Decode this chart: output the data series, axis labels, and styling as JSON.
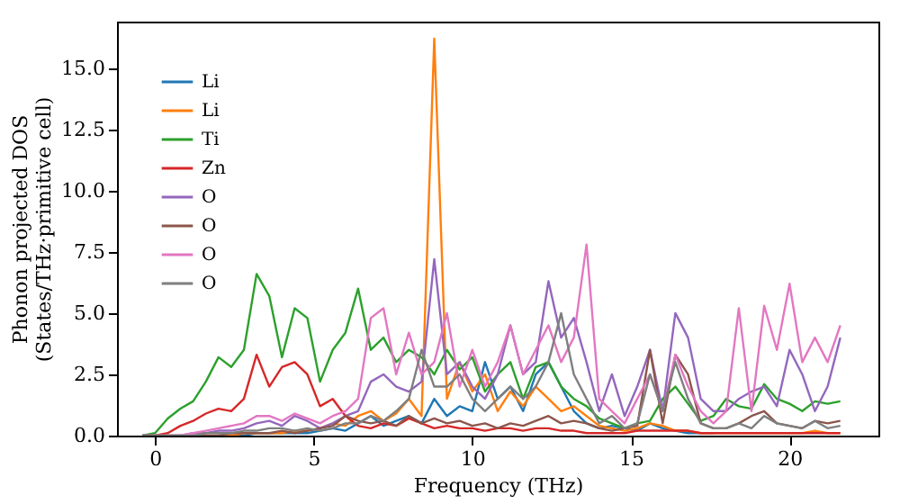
{
  "chart_data": {
    "type": "line",
    "xlabel": "Frequency (THz)",
    "ylabel": "Phonon projected DOS\n(States/THz·primitive cell)",
    "x": [
      -0.4,
      0,
      0.4,
      0.8,
      1.2,
      1.6,
      2.0,
      2.4,
      2.8,
      3.2,
      3.6,
      4.0,
      4.4,
      4.8,
      5.2,
      5.6,
      6.0,
      6.4,
      6.8,
      7.2,
      7.6,
      8.0,
      8.4,
      8.8,
      9.2,
      9.6,
      10.0,
      10.4,
      10.8,
      11.2,
      11.6,
      12.0,
      12.4,
      12.8,
      13.2,
      13.6,
      14.0,
      14.4,
      14.8,
      15.2,
      15.6,
      16.0,
      16.4,
      16.8,
      17.2,
      17.6,
      18.0,
      18.4,
      18.8,
      19.2,
      19.6,
      20.0,
      20.4,
      20.8,
      21.2,
      21.6
    ],
    "series": [
      {
        "name": "Li",
        "color": "#1f77b4",
        "values": [
          null,
          null,
          null,
          null,
          null,
          null,
          0,
          0,
          0,
          0.1,
          0.1,
          0.1,
          0.1,
          0.1,
          0.2,
          0.3,
          0.2,
          0.5,
          0.8,
          0.4,
          0.6,
          0.8,
          0.5,
          1.5,
          0.8,
          1.2,
          1.0,
          3.0,
          1.5,
          2.0,
          1.0,
          2.5,
          3.0,
          2.0,
          1.0,
          0.5,
          0.3,
          0.4,
          0.3,
          0.2,
          0.5,
          0.3,
          0.2,
          0.1,
          0.1,
          0.1,
          null,
          null,
          null,
          null,
          null,
          null,
          null,
          null,
          null,
          null
        ]
      },
      {
        "name": "Li",
        "color": "#ff7f0e",
        "values": [
          null,
          null,
          null,
          null,
          null,
          0,
          0,
          0,
          0.1,
          0.1,
          0.1,
          0.1,
          0.2,
          0.2,
          0.3,
          0.5,
          0.4,
          0.8,
          1.0,
          0.6,
          0.9,
          1.5,
          0.8,
          16.2,
          1.5,
          3.0,
          1.8,
          2.5,
          1.0,
          1.8,
          1.2,
          2.0,
          1.5,
          1.0,
          1.2,
          0.8,
          0.4,
          0.3,
          0.2,
          0.3,
          0.5,
          0.4,
          0.2,
          0.2,
          0.1,
          0.1,
          0.1,
          0.1,
          0.1,
          0.1,
          0.1,
          0.1,
          0.1,
          0.2,
          0.1,
          0.1
        ]
      },
      {
        "name": "Ti",
        "color": "#2ca02c",
        "values": [
          0,
          0.1,
          0.7,
          1.1,
          1.4,
          2.2,
          3.2,
          2.8,
          3.5,
          6.6,
          5.7,
          3.2,
          5.2,
          4.8,
          2.2,
          3.5,
          4.2,
          6.0,
          3.5,
          4.0,
          3.0,
          3.5,
          3.2,
          2.5,
          3.5,
          2.7,
          3.2,
          1.8,
          2.5,
          3.0,
          1.5,
          2.8,
          3.0,
          2.0,
          1.5,
          1.2,
          0.7,
          0.5,
          0.3,
          0.5,
          0.6,
          1.5,
          2.0,
          1.3,
          0.6,
          0.8,
          1.5,
          1.2,
          1.1,
          2.1,
          1.5,
          1.3,
          1.0,
          1.4,
          1.3,
          1.4
        ]
      },
      {
        "name": "Zn",
        "color": "#d62728",
        "values": [
          0,
          0,
          0.1,
          0.4,
          0.6,
          0.9,
          1.1,
          1.0,
          1.5,
          3.3,
          2.0,
          2.8,
          3.0,
          2.5,
          1.2,
          1.5,
          0.8,
          0.4,
          0.3,
          0.5,
          0.4,
          0.7,
          0.5,
          0.3,
          0.4,
          0.3,
          0.3,
          0.2,
          0.3,
          0.3,
          0.2,
          0.3,
          0.3,
          0.2,
          0.2,
          0.1,
          0.1,
          0.1,
          0.1,
          0.2,
          0.2,
          0.2,
          0.2,
          0.2,
          0.1,
          0.1,
          0.1,
          0.1,
          0.1,
          0.1,
          0.1,
          0.1,
          0.1,
          0.1,
          0.1,
          0.1
        ]
      },
      {
        "name": "O",
        "color": "#9467bd",
        "values": [
          null,
          null,
          0,
          0,
          0.1,
          0.1,
          0.2,
          0.2,
          0.3,
          0.5,
          0.6,
          0.4,
          0.8,
          0.6,
          0.3,
          0.5,
          0.8,
          1.0,
          2.2,
          2.5,
          2.0,
          1.8,
          2.2,
          7.2,
          2.5,
          3.0,
          2.0,
          1.5,
          2.5,
          4.5,
          2.5,
          3.0,
          6.3,
          4.0,
          4.8,
          3.0,
          1.0,
          2.5,
          0.8,
          2.0,
          3.5,
          1.0,
          5.0,
          4.0,
          1.5,
          1.0,
          1.0,
          1.5,
          1.8,
          2.0,
          1.2,
          3.5,
          2.5,
          1.0,
          2.0,
          4.0
        ]
      },
      {
        "name": "O",
        "color": "#8c564b",
        "values": [
          0,
          0,
          0,
          0,
          0,
          0,
          0,
          0.1,
          0.1,
          0.1,
          0.1,
          0.2,
          0.1,
          0.2,
          0.3,
          0.4,
          0.8,
          0.6,
          0.5,
          0.6,
          0.4,
          0.8,
          0.5,
          0.7,
          0.5,
          0.6,
          0.4,
          0.5,
          0.3,
          0.5,
          0.4,
          0.6,
          0.8,
          0.5,
          0.6,
          0.5,
          0.3,
          0.2,
          0.3,
          0.4,
          3.5,
          0.5,
          3.3,
          2.5,
          0.5,
          0.3,
          0.3,
          0.5,
          0.8,
          1.0,
          0.5,
          0.4,
          0.3,
          0.6,
          0.5,
          0.6
        ]
      },
      {
        "name": "O",
        "color": "#e377c2",
        "values": [
          0,
          0,
          0,
          0,
          0.1,
          0.2,
          0.3,
          0.4,
          0.5,
          0.8,
          0.8,
          0.6,
          0.9,
          0.7,
          0.5,
          0.8,
          1.0,
          1.5,
          4.8,
          5.2,
          2.5,
          4.2,
          2.5,
          3.0,
          5.0,
          2.0,
          3.5,
          2.0,
          3.0,
          4.5,
          2.5,
          3.5,
          4.5,
          3.0,
          4.0,
          7.8,
          1.5,
          1.0,
          0.5,
          1.5,
          2.5,
          1.0,
          3.3,
          2.0,
          1.0,
          0.5,
          1.0,
          5.2,
          1.0,
          5.3,
          3.5,
          6.2,
          3.0,
          4.0,
          3.0,
          4.5
        ]
      },
      {
        "name": "O",
        "color": "#7f7f7f",
        "values": [
          0,
          0,
          0,
          0,
          0,
          0.1,
          0.1,
          0.1,
          0.2,
          0.2,
          0.3,
          0.3,
          0.2,
          0.3,
          0.2,
          0.3,
          0.5,
          0.5,
          0.8,
          0.6,
          1.0,
          1.5,
          3.5,
          2.0,
          2.0,
          2.5,
          1.5,
          1.0,
          1.5,
          2.0,
          1.5,
          2.0,
          3.0,
          5.0,
          2.5,
          1.5,
          0.5,
          0.8,
          0.3,
          0.5,
          2.5,
          1.0,
          3.0,
          1.5,
          0.5,
          0.3,
          0.3,
          0.5,
          0.3,
          0.8,
          0.5,
          0.4,
          0.3,
          0.6,
          0.3,
          0.4
        ]
      }
    ],
    "xlim": [
      -1.2,
      22.8
    ],
    "xticks": [
      0,
      5,
      10,
      15,
      20
    ],
    "ylim": [
      0,
      16.9
    ],
    "yticks": [
      {
        "value": 0,
        "label": "0.0"
      },
      {
        "value": 2.5,
        "label": "2.5"
      },
      {
        "value": 5,
        "label": "5.0"
      },
      {
        "value": 7.5,
        "label": "7.5"
      },
      {
        "value": 10,
        "label": "10.0"
      },
      {
        "value": 12.5,
        "label": "12.5"
      },
      {
        "value": 15,
        "label": "15.0"
      }
    ],
    "legend": "top left",
    "grid": false,
    "marker": "none",
    "line_style": "solid"
  }
}
